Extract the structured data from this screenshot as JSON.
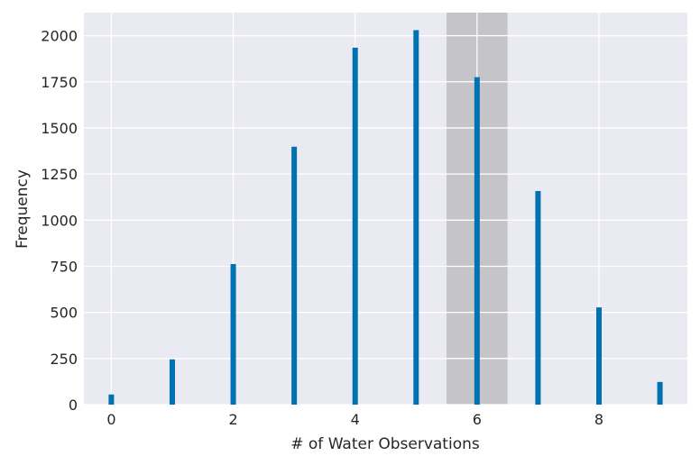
{
  "chart_data": {
    "type": "bar",
    "xlabel": "# of Water Observations",
    "ylabel": "Frequency",
    "x": [
      0,
      1,
      2,
      3,
      4,
      5,
      6,
      7,
      8,
      9
    ],
    "values": [
      55,
      245,
      762,
      1398,
      1935,
      2030,
      1775,
      1158,
      527,
      123
    ],
    "xlim": [
      -0.45,
      9.45
    ],
    "ylim": [
      0,
      2125
    ],
    "xticks": [
      0,
      2,
      4,
      6,
      8
    ],
    "yticks": [
      0,
      250,
      500,
      750,
      1000,
      1250,
      1500,
      1750,
      2000
    ],
    "highlight_span": [
      5.5,
      6.5
    ],
    "grid": true,
    "legend": "none",
    "colors": {
      "bar": "#0072b2",
      "plot_background": "#eaeaf2",
      "grid": "#ffffff",
      "highlight": "#c4c4c9"
    }
  }
}
